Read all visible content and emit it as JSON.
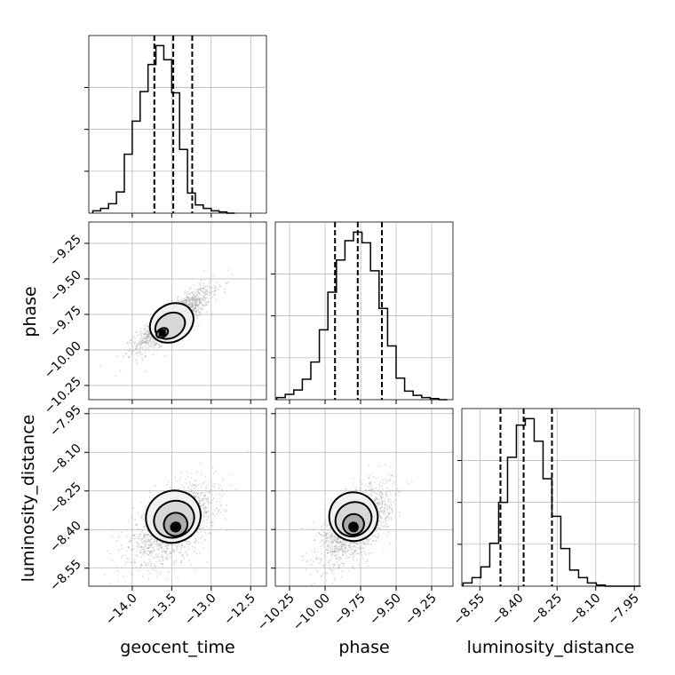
{
  "chart_data": {
    "type": "corner",
    "parameters": [
      "geocent_time",
      "phase",
      "luminosity_distance"
    ],
    "axes": {
      "geocent_time": {
        "label": "geocent_time",
        "range": [
          -14.55,
          -12.3
        ],
        "ticks": [
          -14.0,
          -13.5,
          -13.0,
          -12.5
        ],
        "tick_labels": [
          "−14.0",
          "−13.5",
          "−13.0",
          "−12.5"
        ]
      },
      "phase": {
        "label": "phase",
        "range": [
          -10.35,
          -9.1
        ],
        "ticks": [
          -10.25,
          -10.0,
          -9.75,
          -9.5,
          -9.25
        ],
        "tick_labels": [
          "−10.25",
          "−10.00",
          "−9.75",
          "−9.50",
          "−9.25"
        ]
      },
      "luminosity_distance": {
        "label": "luminosity_distance",
        "range": [
          -8.62,
          -7.93
        ],
        "ticks": [
          -8.55,
          -8.4,
          -8.25,
          -8.1,
          -7.95
        ],
        "tick_labels": [
          "−8.55",
          "−8.40",
          "−8.25",
          "−8.10",
          "−7.95"
        ]
      }
    },
    "histograms": [
      {
        "parameter": "geocent_time",
        "bin_start": -14.5,
        "bin_width": 0.1,
        "counts": [
          2,
          4,
          8,
          18,
          50,
          78,
          103,
          126,
          142,
          130,
          102,
          54,
          17,
          7,
          4,
          2,
          1,
          0
        ],
        "quantiles": [
          -13.72,
          -13.48,
          -13.24
        ]
      },
      {
        "parameter": "phase",
        "bin_start": -10.34,
        "bin_width": 0.06,
        "counts": [
          2,
          5,
          9,
          19,
          35,
          65,
          100,
          130,
          148,
          156,
          146,
          120,
          85,
          50,
          20,
          8,
          4,
          2,
          1,
          0
        ],
        "quantiles": [
          -9.93,
          -9.77,
          -9.6
        ]
      },
      {
        "parameter": "luminosity_distance",
        "bin_start": -8.615,
        "bin_width": 0.0345,
        "counts": [
          3,
          8,
          18,
          40,
          78,
          120,
          150,
          156,
          135,
          100,
          65,
          35,
          15,
          8,
          3,
          1,
          0,
          0,
          0,
          0
        ],
        "quantiles": [
          -8.47,
          -8.38,
          -8.27
        ]
      }
    ],
    "pairs": [
      {
        "x": "geocent_time",
        "y": "phase",
        "center": [
          -13.47,
          -9.78
        ],
        "sigma": [
          0.23,
          0.105
        ],
        "rho": 0.85,
        "contours": [
          {
            "center": [
              -13.62,
              -9.88
            ],
            "extent": [
              0.16,
              0.06
            ]
          },
          {
            "center": [
              -13.52,
              -9.83
            ],
            "extent": [
              0.4,
              0.17
            ]
          },
          {
            "center": [
              -13.5,
              -9.81
            ],
            "extent": [
              0.58,
              0.26
            ]
          }
        ]
      },
      {
        "x": "geocent_time",
        "y": "luminosity_distance",
        "center": [
          -13.48,
          -8.38
        ],
        "sigma": [
          0.26,
          0.075
        ],
        "rho": 0.55,
        "contours": [
          {
            "center": [
              -13.45,
              -8.39
            ],
            "extent": [
              0.12,
              0.035
            ]
          },
          {
            "center": [
              -13.45,
              -8.38
            ],
            "extent": [
              0.3,
              0.09
            ]
          },
          {
            "center": [
              -13.47,
              -8.36
            ],
            "extent": [
              0.52,
              0.14
            ]
          },
          {
            "center": [
              -13.48,
              -8.35
            ],
            "extent": [
              0.7,
              0.2
            ]
          }
        ]
      },
      {
        "x": "phase",
        "y": "luminosity_distance",
        "center": [
          -9.78,
          -8.38
        ],
        "sigma": [
          0.12,
          0.075
        ],
        "rho": 0.6,
        "contours": [
          {
            "center": [
              -9.8,
              -8.39
            ],
            "extent": [
              0.06,
              0.035
            ]
          },
          {
            "center": [
              -9.8,
              -8.38
            ],
            "extent": [
              0.15,
              0.08
            ]
          },
          {
            "center": [
              -9.8,
              -8.36
            ],
            "extent": [
              0.26,
              0.13
            ]
          },
          {
            "center": [
              -9.8,
              -8.35
            ],
            "extent": [
              0.34,
              0.19
            ]
          }
        ]
      }
    ],
    "grid": true,
    "colors": {
      "line": "#000000",
      "scatter": "#9a9a9a",
      "grid": "#b0b0b0",
      "density_light": "#e6e6e6",
      "density_dark": "#000000"
    }
  }
}
